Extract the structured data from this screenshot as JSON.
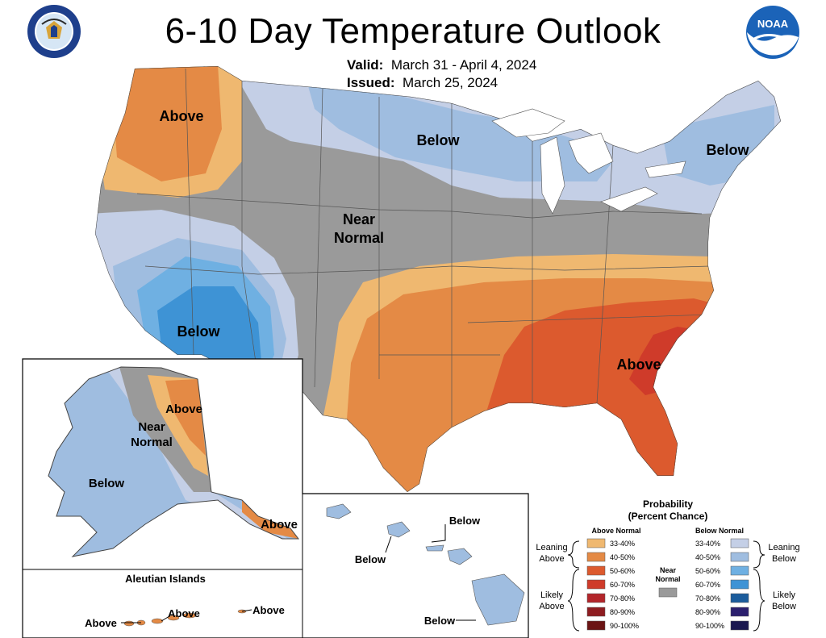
{
  "header": {
    "title": "6-10 Day Temperature Outlook",
    "valid_label": "Valid:",
    "valid_value": "March 31 - April 4, 2024",
    "issued_label": "Issued:",
    "issued_value": "March 25, 2024",
    "noaa_logo_text": "NOAA"
  },
  "map_labels": {
    "conus": {
      "northwest": "Above",
      "north_central": "Below",
      "northeast": "Below",
      "central": [
        "Near",
        "Normal"
      ],
      "southwest": "Below",
      "southeast": "Above"
    },
    "alaska": {
      "west": "Below",
      "central": [
        "Near",
        "Normal"
      ],
      "north_east": "Above",
      "panhandle": "Above"
    },
    "aleutians": {
      "title": "Aleutian Islands",
      "left": "Above",
      "middle": "Above",
      "right": "Above"
    },
    "hawaii": {
      "top": "Below",
      "left": "Below",
      "bottom": "Below"
    }
  },
  "legend": {
    "title": [
      "Probability",
      "(Percent Chance)"
    ],
    "above_header": "Above Normal",
    "below_header": "Below Normal",
    "near_label": [
      "Near",
      "Normal"
    ],
    "leaning_above": [
      "Leaning",
      "Above"
    ],
    "likely_above": [
      "Likely",
      "Above"
    ],
    "leaning_below": [
      "Leaning",
      "Below"
    ],
    "likely_below": [
      "Likely",
      "Below"
    ],
    "ranges": [
      "33-40%",
      "40-50%",
      "50-60%",
      "60-70%",
      "70-80%",
      "80-90%",
      "90-100%"
    ],
    "above_colors": [
      "#efb870",
      "#e48a45",
      "#dc5a2e",
      "#cf3b2a",
      "#b3252a",
      "#8e1c20",
      "#6b1414"
    ],
    "below_colors": [
      "#c4cfe6",
      "#9fbde0",
      "#6fb0e2",
      "#3e93d5",
      "#1b5c9c",
      "#2b1f6e",
      "#1a1850"
    ],
    "near_color": "#9a9a9a"
  },
  "colors": {
    "near_normal": "#9a9a9a",
    "above_33_40": "#efb870",
    "above_40_50": "#e48a45",
    "above_50_60": "#dc5a2e",
    "above_60_70": "#cf3b2a",
    "below_33_40": "#c4cfe6",
    "below_40_50": "#9fbde0",
    "below_50_60": "#6fb0e2",
    "below_60_70": "#3e93d5"
  }
}
